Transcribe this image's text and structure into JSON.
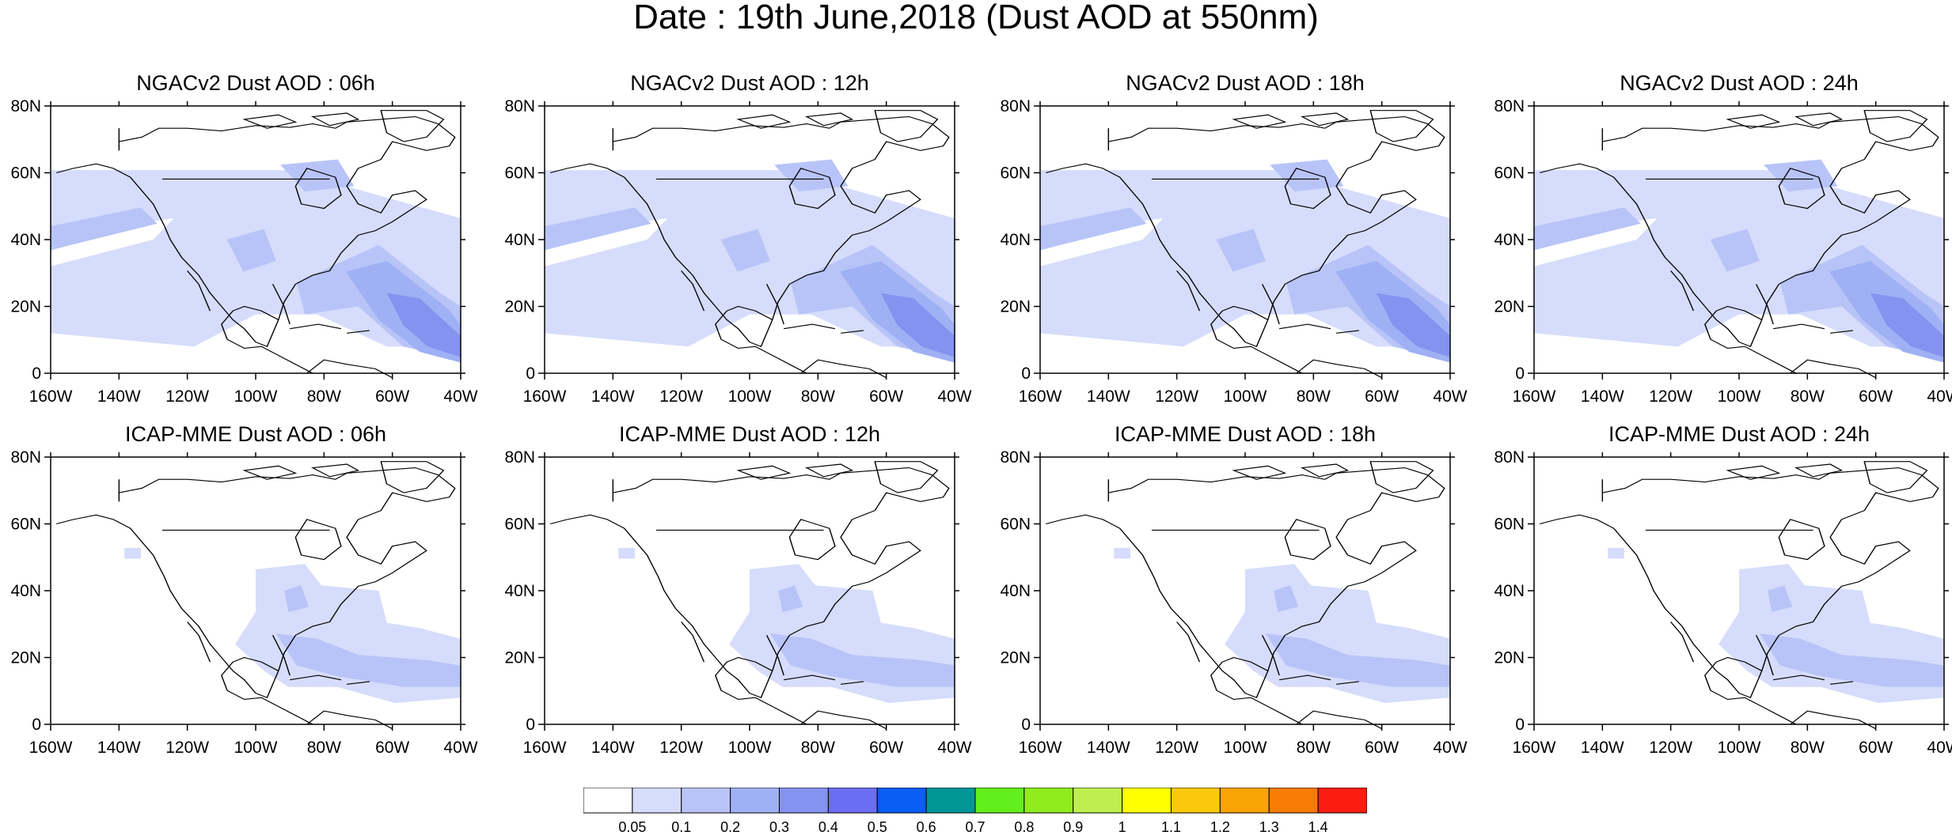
{
  "title": "Date : 19th June,2018 (Dust AOD at 550nm)",
  "rows": [
    {
      "model": "NGACv2",
      "panels": [
        {
          "title": "NGACv2 Dust AOD : 06h"
        },
        {
          "title": "NGACv2 Dust AOD : 12h"
        },
        {
          "title": "NGACv2 Dust AOD : 18h"
        },
        {
          "title": "NGACv2 Dust AOD : 24h"
        }
      ]
    },
    {
      "model": "ICAP-MME",
      "panels": [
        {
          "title": "ICAP-MME Dust AOD : 06h"
        },
        {
          "title": "ICAP-MME Dust AOD : 12h"
        },
        {
          "title": "ICAP-MME Dust AOD : 18h"
        },
        {
          "title": "ICAP-MME Dust AOD : 24h"
        }
      ]
    }
  ],
  "axes": {
    "lon_ticks": [
      "160W",
      "140W",
      "120W",
      "100W",
      "80W",
      "60W",
      "40W"
    ],
    "lat_ticks": [
      "80N",
      "60N",
      "40N",
      "20N",
      "0"
    ]
  },
  "colorbar": {
    "colors": [
      "#ffffff",
      "#d6dcfb",
      "#b8c4f7",
      "#9fb0f4",
      "#8592f0",
      "#6a6ef0",
      "#0a5df5",
      "#009696",
      "#63ef1b",
      "#8fec1d",
      "#bdf04f",
      "#ffff00",
      "#fbc90c",
      "#faa305",
      "#f77c06",
      "#fb1d10"
    ],
    "labels": [
      "0.05",
      "0.1",
      "0.2",
      "0.3",
      "0.4",
      "0.5",
      "0.6",
      "0.7",
      "0.8",
      "0.9",
      "1",
      "1.1",
      "1.2",
      "1.3",
      "1.4"
    ]
  }
}
